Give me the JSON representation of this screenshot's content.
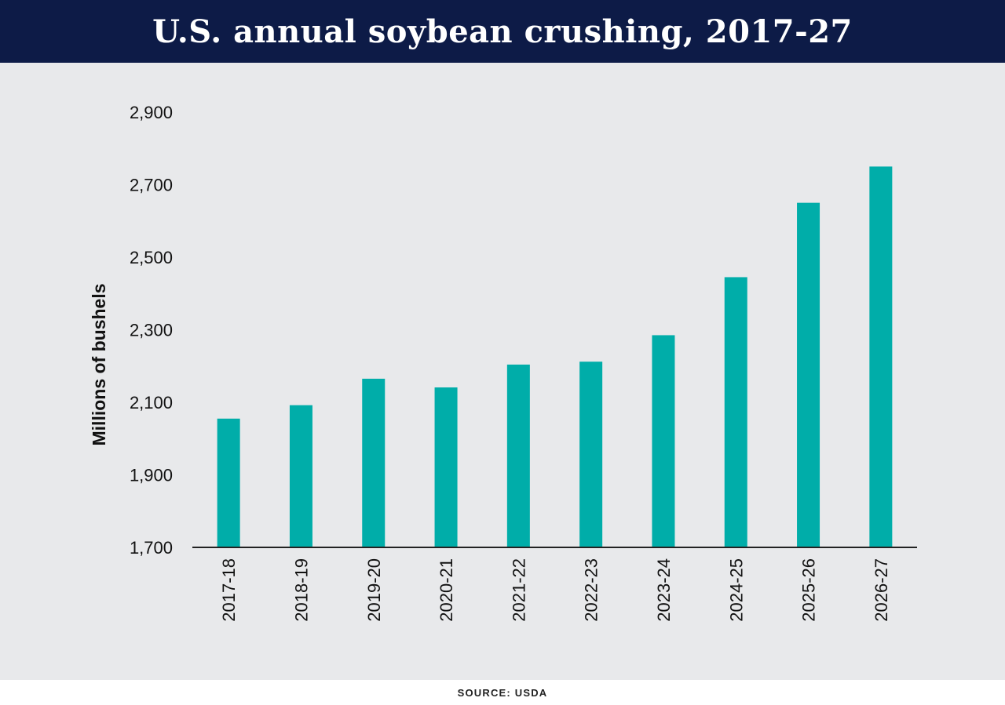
{
  "header": {
    "title": "U.S. annual soybean crushing, 2017-27"
  },
  "footer": {
    "source": "SOURCE: USDA"
  },
  "colors": {
    "bar": "#00ada9",
    "header_bg": "#0d1b47",
    "plot_bg": "#e8e9eb",
    "axis": "#222222"
  },
  "chart_data": {
    "type": "bar",
    "title": "U.S. annual soybean crushing, 2017-27",
    "xlabel": "",
    "ylabel": "Millions of bushels",
    "ylim": [
      1700,
      2900
    ],
    "yticks": [
      "1,700",
      "1,900",
      "2,100",
      "2,300",
      "2,500",
      "2,700",
      "2,900"
    ],
    "ytick_values": [
      1700,
      1900,
      2100,
      2300,
      2500,
      2700,
      2900
    ],
    "categories": [
      "2017-18",
      "2018-19",
      "2019-20",
      "2020-21",
      "2021-22",
      "2022-23",
      "2023-24",
      "2024-25",
      "2025-26",
      "2026-27"
    ],
    "values": [
      2055,
      2092,
      2165,
      2141,
      2204,
      2212,
      2285,
      2445,
      2650,
      2750
    ],
    "grid": false,
    "legend": "none"
  }
}
